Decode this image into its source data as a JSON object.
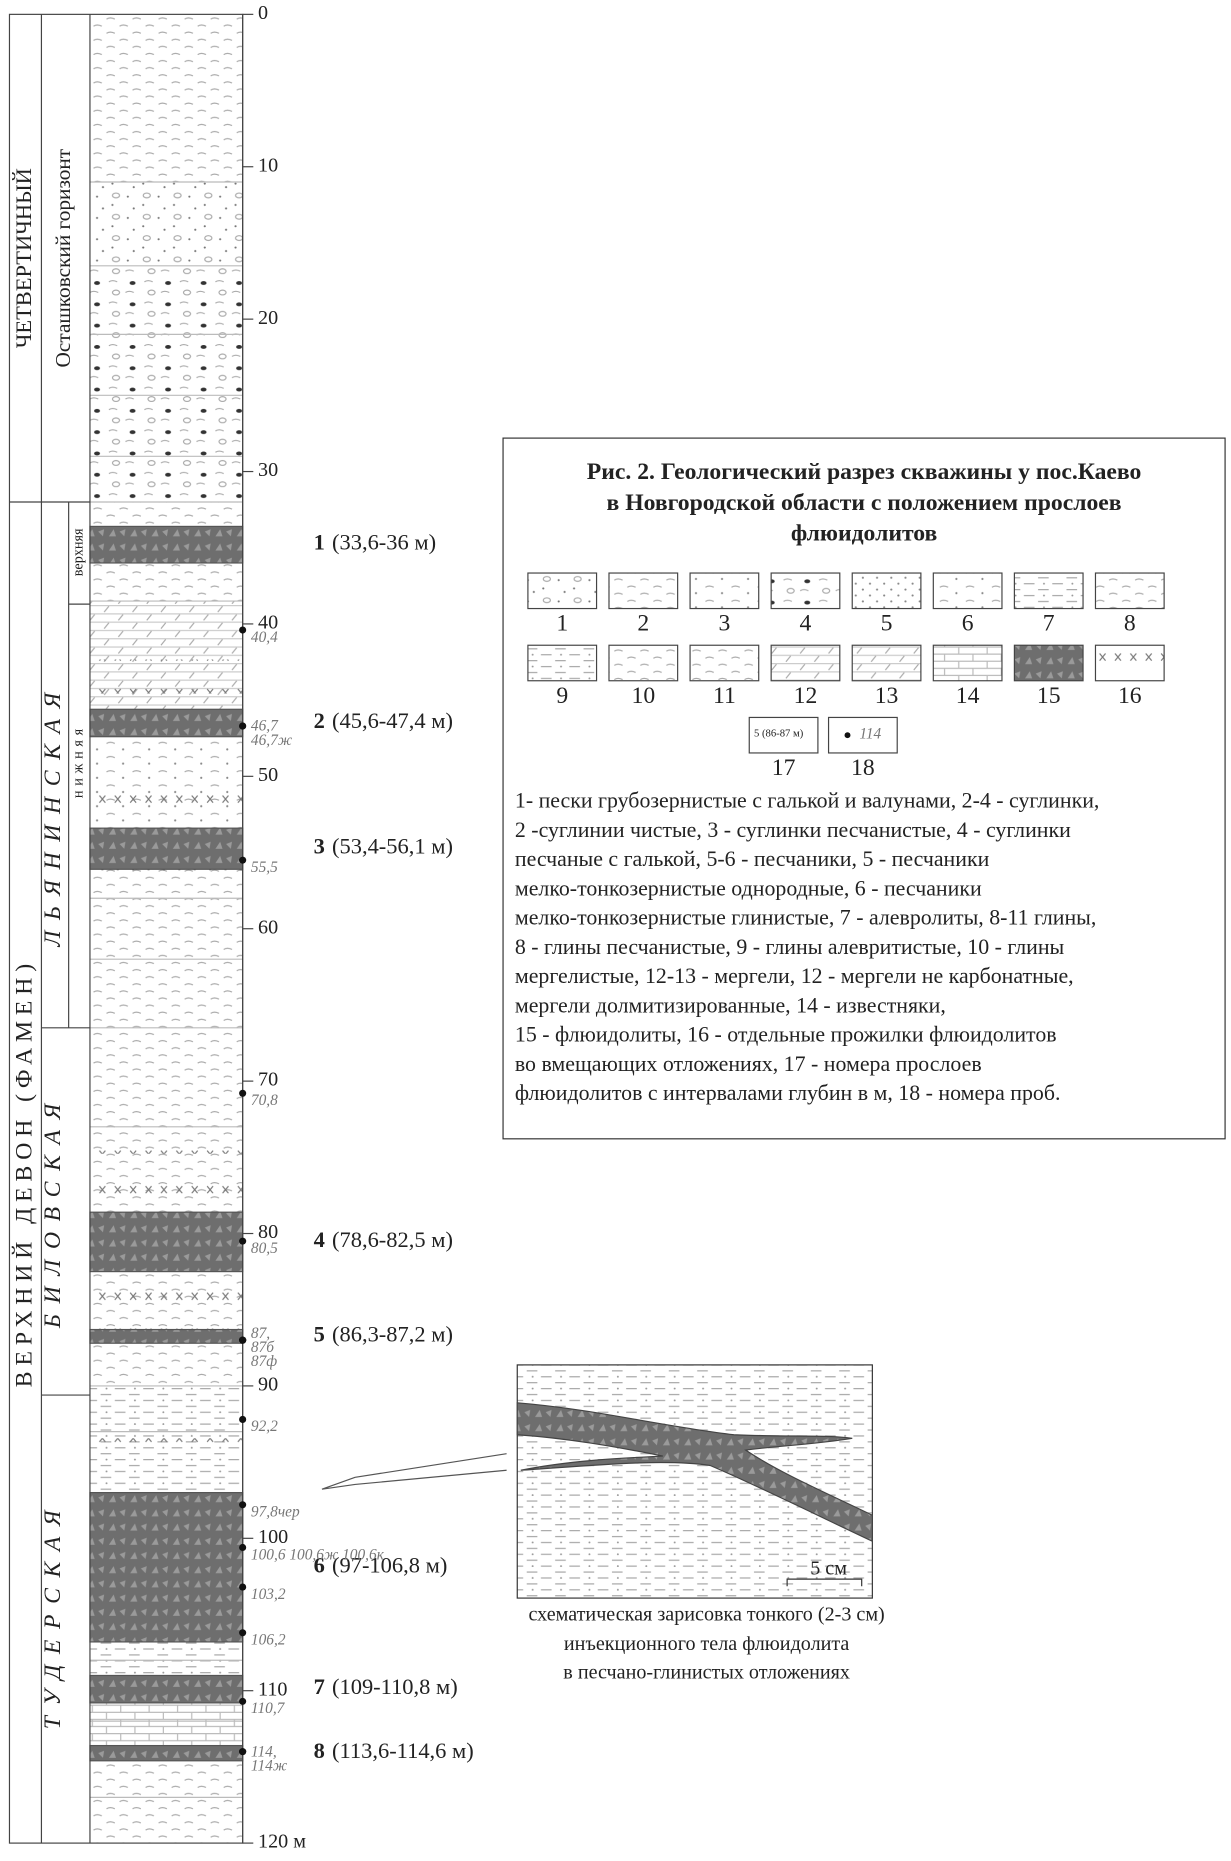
{
  "column": {
    "system_upper": "ЧЕТВЕРТИЧНЫЙ",
    "horizon": "Осташковский горизонт",
    "system_lower": "ВЕРХНИЙ ДЕВОН (ФАМЕН)",
    "formations": [
      "ЛЬЯНИНСКАЯ",
      "БИЛОВСКАЯ",
      "ТУДЕРСКАЯ"
    ],
    "subformations": [
      "верхняя",
      "нижняя"
    ]
  },
  "depth_scale": {
    "range": [
      0,
      120
    ],
    "ticks": [
      0,
      10,
      20,
      30,
      40,
      50,
      60,
      70,
      80,
      90,
      100,
      110,
      {
        "value": 120,
        "label": "120 м"
      }
    ]
  },
  "layers": [
    {
      "number": "1",
      "interval": "(33,6-36 м)",
      "top": 33.6,
      "bottom": 36
    },
    {
      "number": "2",
      "interval": "(45,6-47,4 м)",
      "top": 45.6,
      "bottom": 47.4
    },
    {
      "number": "3",
      "interval": "(53,4-56,1 м)",
      "top": 53.4,
      "bottom": 56.1
    },
    {
      "number": "4",
      "interval": "(78,6-82,5 м)",
      "top": 78.6,
      "bottom": 82.5
    },
    {
      "number": "5",
      "interval": "(86,3-87,2 м)",
      "top": 86.3,
      "bottom": 87.2
    },
    {
      "number": "6",
      "interval": "(97-106,8 м)",
      "top": 97,
      "bottom": 106.8
    },
    {
      "number": "7",
      "interval": "(109-110,8 м)",
      "top": 109,
      "bottom": 110.8
    },
    {
      "number": "8",
      "interval": "(113,6-114,6 м)",
      "top": 113.6,
      "bottom": 114.6
    }
  ],
  "samples": [
    {
      "label": "40,4",
      "depth": 40.4
    },
    {
      "label": "46,7",
      "depth": 46.7
    },
    {
      "label": "46,7ж",
      "depth": 46.7
    },
    {
      "label": "55,5",
      "depth": 55.5
    },
    {
      "label": "70,8",
      "depth": 70.8
    },
    {
      "label": "80,5",
      "depth": 80.5
    },
    {
      "label": "87,",
      "depth": 87
    },
    {
      "label": "87б",
      "depth": 87
    },
    {
      "label": "87ф",
      "depth": 87
    },
    {
      "label": "92,2",
      "depth": 92.2
    },
    {
      "label": "97,8чер",
      "depth": 97.8
    },
    {
      "label": "100,6 100,6ж 100,6к",
      "depth": 100.6
    },
    {
      "label": "103,2",
      "depth": 103.2
    },
    {
      "label": "106,2",
      "depth": 106.2
    },
    {
      "label": "110,7",
      "depth": 110.7
    },
    {
      "label": "114,",
      "depth": 114
    },
    {
      "label": "114ж",
      "depth": 114
    }
  ],
  "legend": {
    "title": [
      "Рис. 2. Геологический разрез скважины у пос.Каево",
      "в Новгородской области с положением прослоев",
      "флюидолитов"
    ],
    "items": [
      "1",
      "2",
      "3",
      "4",
      "5",
      "6",
      "7",
      "8",
      "9",
      "10",
      "11",
      "12",
      "13",
      "14",
      "15",
      "16",
      "17",
      "18"
    ],
    "item17_sample": "5 (86-87 м)",
    "item18_sample": "114",
    "description": [
      "1- пески грубозернистые с галькой и валунами, 2-4 - суглинки,",
      "2 -суглинии чистые, 3 - суглинки песчанистые, 4 - суглинки",
      "песчаные с галькой, 5-6 - песчаники, 5 - песчаники",
      "мелко-тонкозернистые однородные, 6 - песчаники",
      "мелко-тонкозернистые глинистые, 7 - алевролиты, 8-11 глины,",
      "8 - глины песчанистые, 9 - глины алевритистые, 10 - глины",
      "мергелистые, 12-13 - мергели, 12 - мергели не карбонатные,",
      "мергели долмитизированные, 14 - известняки,",
      "15 - флюидолиты, 16 - отдельные прожилки флюидолитов",
      "во вмещающих отложениях, 17 - номера прослоев",
      "флюидолитов с интервалами глубин в м, 18 - номера проб."
    ]
  },
  "inset": {
    "scale": "5 см",
    "caption": [
      "схематическая зарисовка тонкого (2-3 см)",
      "инъекционного тела флюидолита",
      "в песчано-глинистых отложениях"
    ]
  }
}
